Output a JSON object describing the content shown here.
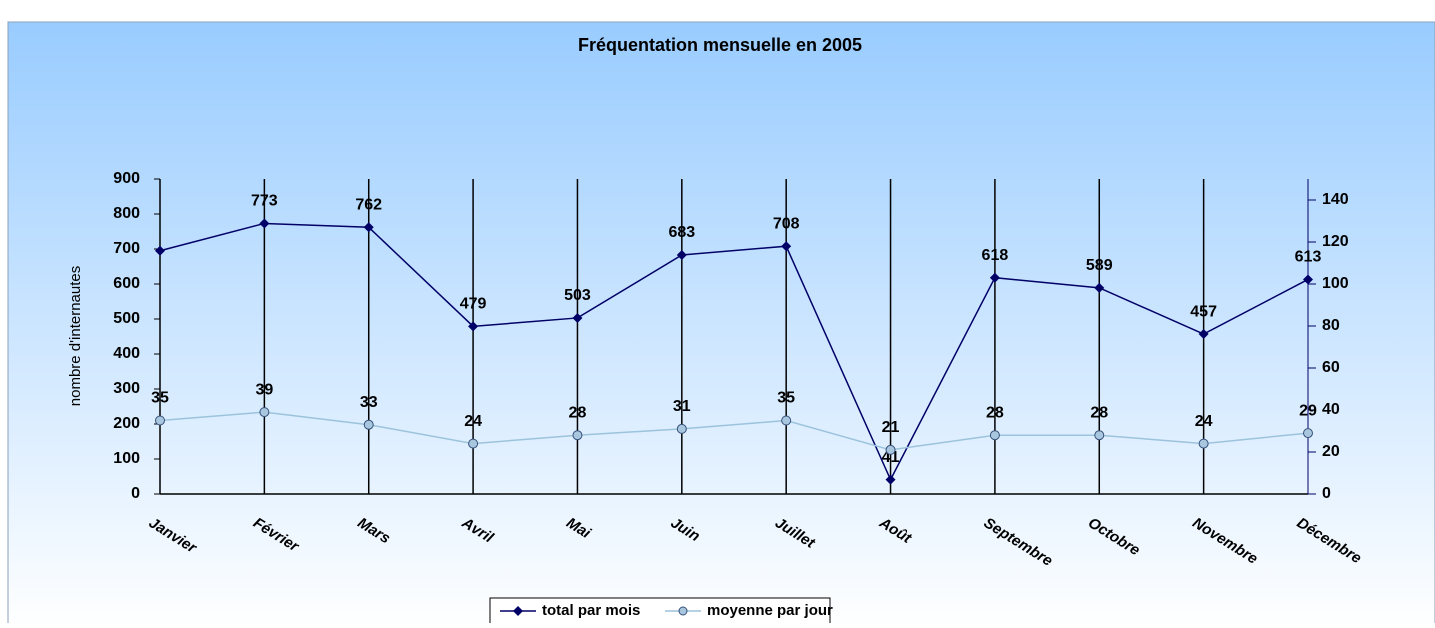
{
  "chart_data": {
    "type": "line",
    "title": "Fréquentation mensuelle en 2005",
    "y_label": "nombre d'internautes",
    "categories": [
      "Janvier",
      "Février",
      "Mars",
      "Avril",
      "Mai",
      "Juin",
      "Juillet",
      "Août",
      "Septembre",
      "Octobre",
      "Novembre",
      "Décembre"
    ],
    "series": [
      {
        "name": "total par mois",
        "color": "#000066",
        "marker": "diamond",
        "values": [
          695,
          773,
          762,
          479,
          503,
          683,
          708,
          41,
          618,
          589,
          457,
          613
        ],
        "value_labels": [
          null,
          "773",
          "762",
          "479",
          "503",
          "683",
          "708",
          "41",
          "618",
          "589",
          "457",
          "613"
        ]
      },
      {
        "name": "moyenne par jour",
        "color": "#9cc3dc",
        "marker": "circle",
        "axis": "y2",
        "values": [
          35,
          39,
          33,
          24,
          28,
          31,
          35,
          21,
          28,
          28,
          24,
          29
        ]
      }
    ],
    "ylim": [
      0,
      900
    ],
    "yticks": [
      0,
      100,
      200,
      300,
      400,
      500,
      600,
      700,
      800,
      900
    ],
    "y2lim": [
      0,
      150
    ],
    "y2ticks": [
      0,
      20,
      40,
      60,
      80,
      100,
      120,
      140
    ],
    "grid": "vertical",
    "legend": "bottom"
  }
}
